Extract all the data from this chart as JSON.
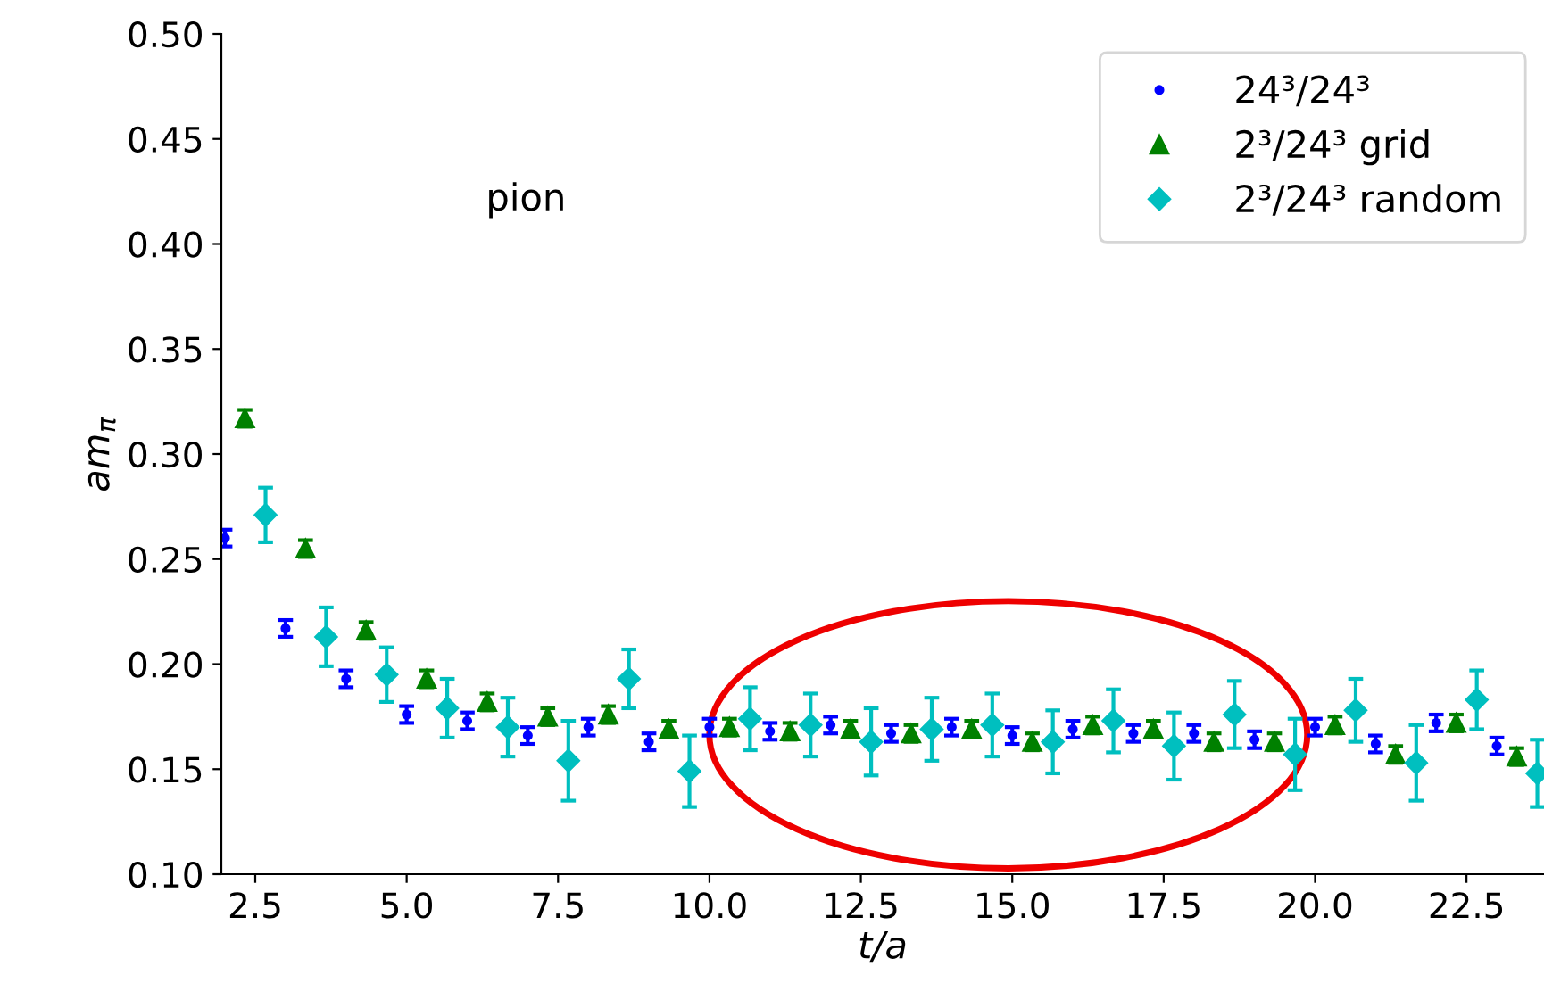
{
  "chart_data": {
    "type": "scatter",
    "xlabel": "t/a",
    "ylabel": "am$_{π}$",
    "annotations": [
      "pion"
    ],
    "xlim": [
      1.94,
      23.78
    ],
    "ylim": [
      0.1,
      0.5
    ],
    "xticks": [
      {
        "value": 2.5,
        "label": "2.5"
      },
      {
        "value": 5,
        "label": "5.0"
      },
      {
        "value": 7.5,
        "label": "7.5"
      },
      {
        "value": 10,
        "label": "10.0"
      },
      {
        "value": 12.5,
        "label": "12.5"
      },
      {
        "value": 15,
        "label": "15.0"
      },
      {
        "value": 17.5,
        "label": "17.5"
      },
      {
        "value": 20,
        "label": "20.0"
      },
      {
        "value": 22.5,
        "label": "22.5"
      }
    ],
    "yticks": [
      {
        "value": 0.1,
        "label": "0.10"
      },
      {
        "value": 0.15,
        "label": "0.15"
      },
      {
        "value": 0.2,
        "label": "0.20"
      },
      {
        "value": 0.25,
        "label": "0.25"
      },
      {
        "value": 0.3,
        "label": "0.30"
      },
      {
        "value": 0.35,
        "label": "0.35"
      },
      {
        "value": 0.4,
        "label": "0.40"
      },
      {
        "value": 0.45,
        "label": "0.45"
      },
      {
        "value": 0.5,
        "label": "0.50"
      }
    ],
    "grid": false,
    "legend": "top right",
    "series": [
      {
        "name": "24³/24³",
        "color": "#0000ff",
        "marker": "circle",
        "x": [
          2,
          3,
          4,
          5,
          6,
          7,
          8,
          9,
          10,
          11,
          12,
          13,
          14,
          15,
          16,
          17,
          18,
          19,
          20,
          21,
          22,
          23
        ],
        "values": [
          0.26,
          0.217,
          0.193,
          0.176,
          0.173,
          0.166,
          0.17,
          0.163,
          0.17,
          0.168,
          0.171,
          0.167,
          0.17,
          0.166,
          0.169,
          0.167,
          0.167,
          0.164,
          0.17,
          0.162,
          0.172,
          0.161
        ],
        "errors": [
          0.004,
          0.004,
          0.004,
          0.004,
          0.004,
          0.004,
          0.004,
          0.004,
          0.004,
          0.004,
          0.004,
          0.004,
          0.004,
          0.004,
          0.004,
          0.004,
          0.004,
          0.004,
          0.004,
          0.004,
          0.004,
          0.004
        ]
      },
      {
        "name": "2³/24³ grid",
        "color": "#008000",
        "marker": "triangle",
        "x": [
          2.33,
          3.33,
          4.33,
          5.33,
          6.33,
          7.33,
          8.33,
          9.33,
          10.33,
          11.33,
          12.33,
          13.33,
          14.33,
          15.33,
          16.33,
          17.33,
          18.33,
          19.33,
          20.33,
          21.33,
          22.33,
          23.33
        ],
        "values": [
          0.317,
          0.255,
          0.216,
          0.193,
          0.182,
          0.175,
          0.176,
          0.169,
          0.17,
          0.168,
          0.169,
          0.167,
          0.169,
          0.163,
          0.171,
          0.169,
          0.163,
          0.163,
          0.171,
          0.157,
          0.172,
          0.156
        ],
        "errors": [
          0.004,
          0.004,
          0.004,
          0.004,
          0.004,
          0.004,
          0.004,
          0.004,
          0.004,
          0.004,
          0.004,
          0.004,
          0.004,
          0.004,
          0.004,
          0.004,
          0.004,
          0.004,
          0.004,
          0.004,
          0.004,
          0.004
        ]
      },
      {
        "name": "2³/24³ random",
        "color": "#00bfbf",
        "marker": "diamond",
        "x": [
          2.67,
          3.67,
          4.67,
          5.67,
          6.67,
          7.67,
          8.67,
          9.67,
          10.67,
          11.67,
          12.67,
          13.67,
          14.67,
          15.67,
          16.67,
          17.67,
          18.67,
          19.67,
          20.67,
          21.67,
          22.67,
          23.67
        ],
        "values": [
          0.271,
          0.213,
          0.195,
          0.179,
          0.17,
          0.154,
          0.193,
          0.149,
          0.174,
          0.171,
          0.163,
          0.169,
          0.171,
          0.163,
          0.173,
          0.161,
          0.176,
          0.157,
          0.178,
          0.153,
          0.183,
          0.148
        ],
        "errors": [
          0.013,
          0.014,
          0.013,
          0.014,
          0.014,
          0.019,
          0.014,
          0.017,
          0.015,
          0.015,
          0.016,
          0.015,
          0.015,
          0.015,
          0.015,
          0.016,
          0.016,
          0.017,
          0.015,
          0.018,
          0.014,
          0.016
        ]
      }
    ]
  }
}
